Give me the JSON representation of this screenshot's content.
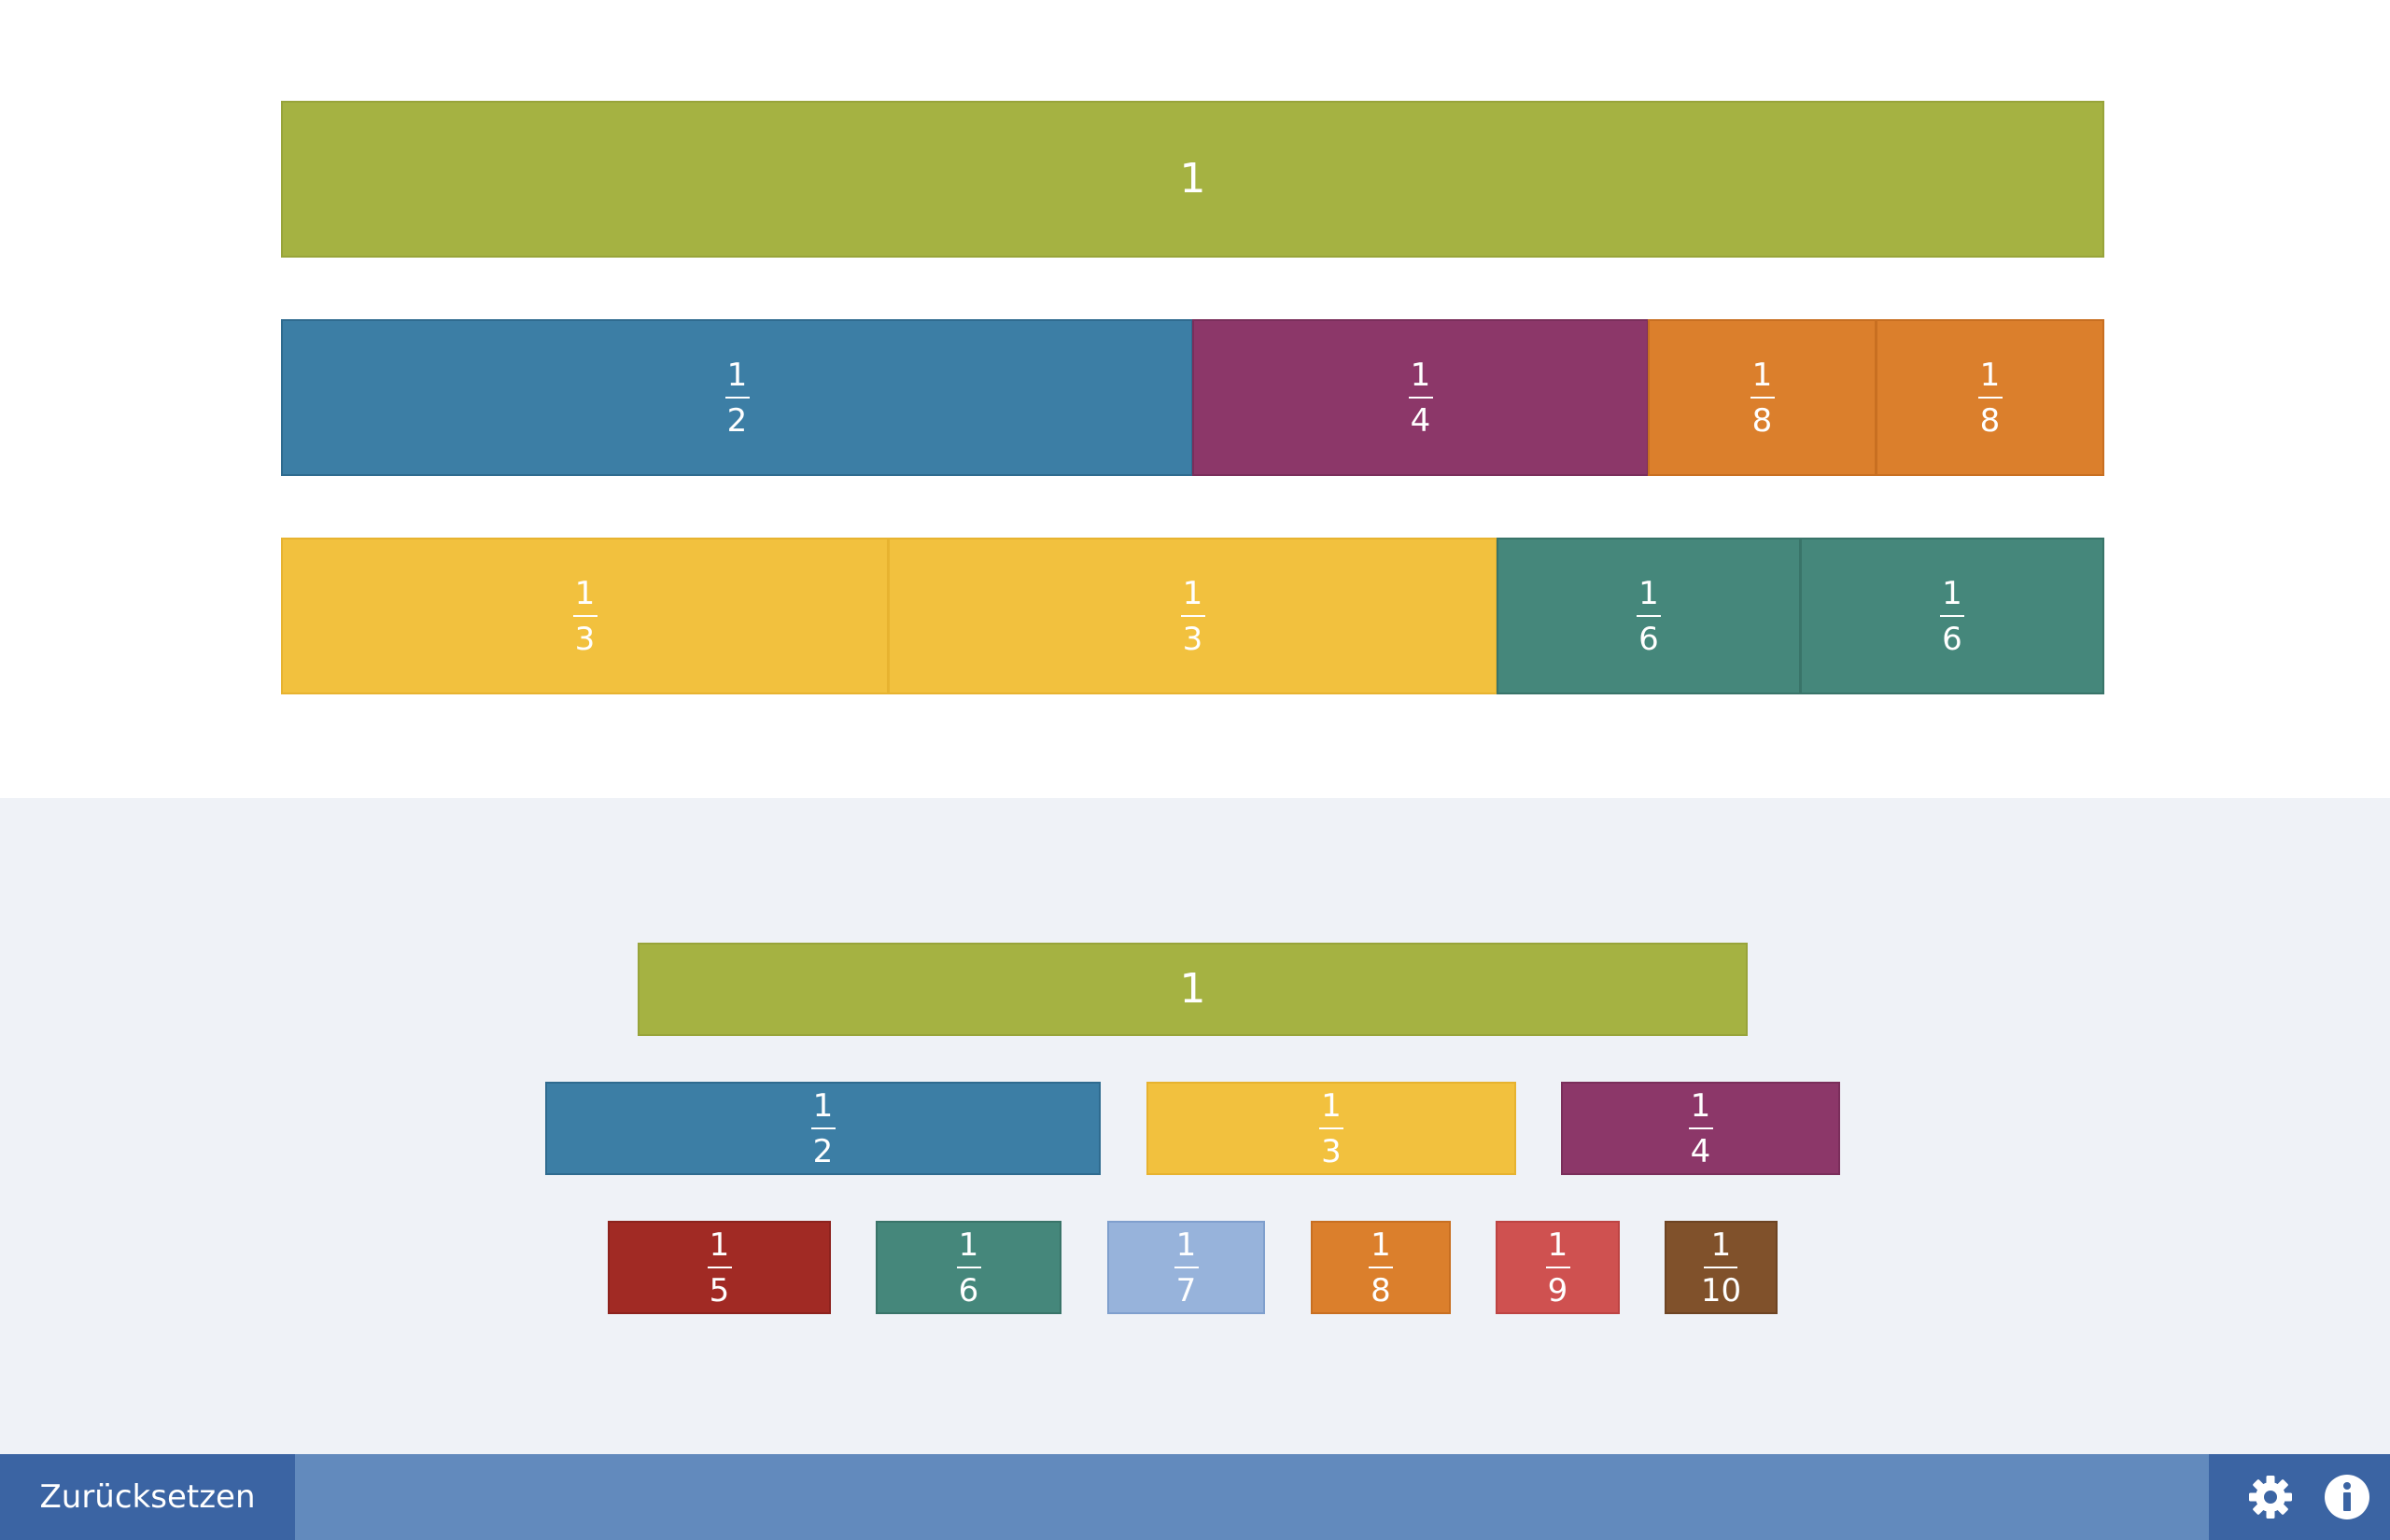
{
  "workspace": {
    "rows": [
      [
        {
          "label": "1",
          "color": "#a5b242"
        }
      ],
      [
        {
          "num": "1",
          "den": "2",
          "color": "#3c7ea5"
        },
        {
          "num": "1",
          "den": "4",
          "color": "#8c3769"
        },
        {
          "num": "1",
          "den": "8",
          "color": "#db7f2c"
        },
        {
          "num": "1",
          "den": "8",
          "color": "#db7f2c"
        }
      ],
      [
        {
          "num": "1",
          "den": "3",
          "color": "#f2c13e"
        },
        {
          "num": "1",
          "den": "3",
          "color": "#f2c13e"
        },
        {
          "num": "1",
          "den": "6",
          "color": "#45877b"
        },
        {
          "num": "1",
          "den": "6",
          "color": "#45877b"
        }
      ]
    ]
  },
  "palette": {
    "whole": {
      "label": "1",
      "color": "#a5b242"
    },
    "row2": [
      {
        "num": "1",
        "den": "2",
        "color": "#3c7ea5"
      },
      {
        "num": "1",
        "den": "3",
        "color": "#f2c13e"
      },
      {
        "num": "1",
        "den": "4",
        "color": "#8c3769"
      }
    ],
    "row3": [
      {
        "num": "1",
        "den": "5",
        "color": "#a12a24"
      },
      {
        "num": "1",
        "den": "6",
        "color": "#45877b"
      },
      {
        "num": "1",
        "den": "7",
        "color": "#97b3db"
      },
      {
        "num": "1",
        "den": "8",
        "color": "#db7f2c"
      },
      {
        "num": "1",
        "den": "9",
        "color": "#cf5150"
      },
      {
        "num": "1",
        "den": "10",
        "color": "#80512b"
      }
    ]
  },
  "footer": {
    "reset_label": "Zurücksetzen",
    "settings_icon": "gear-icon",
    "info_icon": "info-icon"
  }
}
